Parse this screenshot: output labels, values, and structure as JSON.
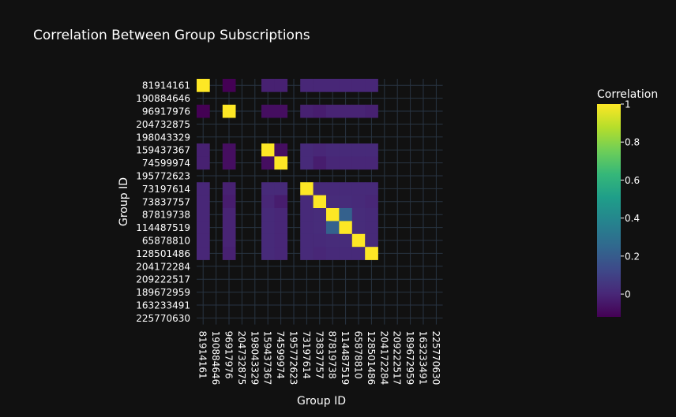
{
  "chart_data": {
    "type": "heatmap",
    "title": "Correlation Between Group Subscriptions",
    "xlabel": "Group ID",
    "ylabel": "Group ID",
    "categories": [
      "81914161",
      "190884646",
      "96917976",
      "204732875",
      "198043329",
      "159437367",
      "74599974",
      "195772623",
      "73197614",
      "73837757",
      "87819738",
      "114487519",
      "65878810",
      "128501486",
      "204172284",
      "209222517",
      "189672959",
      "163233491",
      "225770630"
    ],
    "colorbar": {
      "title": "Correlation",
      "ticks": [
        0,
        0.2,
        0.4,
        0.6,
        0.8,
        1
      ],
      "range": [
        -0.12,
        1
      ],
      "colorscale": "Viridis"
    },
    "grid": true,
    "values": [
      [
        1,
        null,
        -0.12,
        null,
        null,
        -0.02,
        -0.02,
        null,
        0.0,
        0.0,
        0.0,
        0.0,
        0.0,
        0.0,
        null,
        null,
        null,
        null,
        null
      ],
      [
        null,
        null,
        null,
        null,
        null,
        null,
        null,
        null,
        null,
        null,
        null,
        null,
        null,
        null,
        null,
        null,
        null,
        null,
        null
      ],
      [
        -0.12,
        null,
        1,
        null,
        null,
        -0.08,
        -0.08,
        null,
        -0.02,
        -0.03,
        -0.01,
        -0.01,
        -0.01,
        -0.02,
        null,
        null,
        null,
        null,
        null
      ],
      [
        null,
        null,
        null,
        null,
        null,
        null,
        null,
        null,
        null,
        null,
        null,
        null,
        null,
        null,
        null,
        null,
        null,
        null,
        null
      ],
      [
        null,
        null,
        null,
        null,
        null,
        null,
        null,
        null,
        null,
        null,
        null,
        null,
        null,
        null,
        null,
        null,
        null,
        null,
        null
      ],
      [
        -0.02,
        null,
        -0.08,
        null,
        null,
        1,
        -0.08,
        null,
        0.01,
        0.0,
        0.01,
        0.01,
        0.01,
        0.01,
        null,
        null,
        null,
        null,
        null
      ],
      [
        -0.02,
        null,
        -0.08,
        null,
        null,
        -0.08,
        1,
        null,
        0.01,
        -0.03,
        0.0,
        0.0,
        0.0,
        0.0,
        null,
        null,
        null,
        null,
        null
      ],
      [
        null,
        null,
        null,
        null,
        null,
        null,
        null,
        null,
        null,
        null,
        null,
        null,
        null,
        null,
        null,
        null,
        null,
        null,
        null
      ],
      [
        0.0,
        null,
        -0.02,
        null,
        null,
        0.01,
        0.01,
        null,
        1,
        0.01,
        0.01,
        0.01,
        0.01,
        0.01,
        null,
        null,
        null,
        null,
        null
      ],
      [
        0.0,
        null,
        -0.03,
        null,
        null,
        0.0,
        -0.03,
        null,
        0.01,
        1,
        0.02,
        0.02,
        0.01,
        0.0,
        null,
        null,
        null,
        null,
        null
      ],
      [
        0.0,
        null,
        -0.01,
        null,
        null,
        0.01,
        0.0,
        null,
        0.01,
        0.02,
        1,
        0.22,
        0.02,
        0.01,
        null,
        null,
        null,
        null,
        null
      ],
      [
        0.0,
        null,
        -0.01,
        null,
        null,
        0.01,
        0.0,
        null,
        0.01,
        0.02,
        0.22,
        1,
        0.02,
        0.01,
        null,
        null,
        null,
        null,
        null
      ],
      [
        0.0,
        null,
        -0.01,
        null,
        null,
        0.01,
        0.0,
        null,
        0.01,
        0.01,
        0.02,
        0.02,
        1,
        0.01,
        null,
        null,
        null,
        null,
        null
      ],
      [
        0.0,
        null,
        -0.02,
        null,
        null,
        0.01,
        0.0,
        null,
        0.01,
        0.0,
        0.01,
        0.01,
        0.01,
        1,
        null,
        null,
        null,
        null,
        null
      ],
      [
        null,
        null,
        null,
        null,
        null,
        null,
        null,
        null,
        null,
        null,
        null,
        null,
        null,
        null,
        null,
        null,
        null,
        null,
        null
      ],
      [
        null,
        null,
        null,
        null,
        null,
        null,
        null,
        null,
        null,
        null,
        null,
        null,
        null,
        null,
        null,
        null,
        null,
        null,
        null
      ],
      [
        null,
        null,
        null,
        null,
        null,
        null,
        null,
        null,
        null,
        null,
        null,
        null,
        null,
        null,
        null,
        null,
        null,
        null,
        null
      ],
      [
        null,
        null,
        null,
        null,
        null,
        null,
        null,
        null,
        null,
        null,
        null,
        null,
        null,
        null,
        null,
        null,
        null,
        null,
        null
      ],
      [
        null,
        null,
        null,
        null,
        null,
        null,
        null,
        null,
        null,
        null,
        null,
        null,
        null,
        null,
        null,
        null,
        null,
        null,
        null
      ]
    ]
  }
}
